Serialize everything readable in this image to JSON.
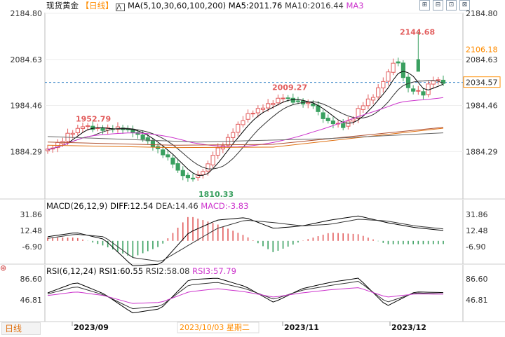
{
  "header": {
    "symbol": "现货黄金",
    "period": "【日线】",
    "ma_set": "MA(5,10,30,60,100,200)",
    "ma5": "MA5:2011.76",
    "ma10": "MA10:2016.44",
    "ma3": "MA3"
  },
  "toolbar": [
    "⊞",
    "⊟",
    "⊡",
    "⊠"
  ],
  "price_axis": [
    "2184.80",
    "2106.18",
    "2084.63",
    "2034.57",
    "1984.46",
    "1884.29"
  ],
  "annotations": {
    "high": "2144.68",
    "peak_sep": "1952.79",
    "peak_oct": "2009.27",
    "low": "1810.33"
  },
  "macd": {
    "title": "MACD(26,12,9)",
    "diff": "DIFF:12.54",
    "dea": "DEA:14.46",
    "macd": "MACD:-3.83",
    "ticks": [
      "31.86",
      "12.48",
      "-6.90"
    ]
  },
  "rsi": {
    "title": "RSI(6,12,24)",
    "rsi1": "RSI1:60.55",
    "rsi2": "RSI2:58.08",
    "rsi3": "RSI3:57.79",
    "ticks": [
      "86.60",
      "46.81"
    ]
  },
  "xaxis": {
    "months": [
      "2023/09",
      "2023/11",
      "2023/12"
    ],
    "cursor_date": "2023/10/03 星期二",
    "period_button": "日线"
  },
  "colors": {
    "up": "#e25c5c",
    "down": "#3aa060",
    "ma5": "#000000",
    "ma10": "#333333",
    "ma30": "#cc33cc",
    "ma60": "#e07010",
    "ma100": "#b05030",
    "ma200": "#666666",
    "accent": "#ff8c00"
  },
  "chart_data": [
    {
      "type": "candlestick",
      "title": "现货黄金",
      "x": [
        "2023-08-21",
        "2023-09-01",
        "2023-09-20",
        "2023-10-06",
        "2023-10-09",
        "2023-10-20",
        "2023-10-27",
        "2023-11-03",
        "2023-11-13",
        "2023-11-24",
        "2023-12-01",
        "2023-12-04",
        "2023-12-08",
        "2023-12-13",
        "2023-12-15"
      ],
      "close": [
        1888,
        1940,
        1930,
        1825,
        1833,
        1975,
        2006,
        1993,
        1940,
        1995,
        2055,
        2075,
        2010,
        2045,
        2036
      ],
      "ma5": [
        1900,
        1938,
        1928,
        1840,
        1830,
        1960,
        1995,
        1995,
        1955,
        1990,
        2040,
        2070,
        2018,
        2012,
        2012
      ],
      "ylim": [
        1784,
        2185
      ],
      "grid": true
    },
    {
      "type": "line",
      "title": "MACD(26,12,9)",
      "series": [
        {
          "name": "DIFF",
          "values": [
            5,
            10,
            2,
            -30,
            -28,
            10,
            25,
            28,
            15,
            18,
            25,
            30,
            22,
            16,
            12.54
          ]
        },
        {
          "name": "DEA",
          "values": [
            3,
            8,
            5,
            -20,
            -25,
            -5,
            15,
            25,
            22,
            18,
            20,
            26,
            24,
            18,
            14.46
          ]
        },
        {
          "name": "MACD",
          "values": [
            4,
            4,
            -6,
            -20,
            -6,
            30,
            20,
            6,
            -14,
            0,
            10,
            8,
            -4,
            -4,
            -3.83
          ]
        }
      ],
      "ylim": [
        -21,
        46
      ]
    },
    {
      "type": "line",
      "title": "RSI(6,12,24)",
      "series": [
        {
          "name": "RSI1",
          "values": [
            60,
            80,
            58,
            22,
            30,
            85,
            88,
            72,
            42,
            68,
            80,
            88,
            35,
            62,
            60.55
          ]
        },
        {
          "name": "RSI2",
          "values": [
            58,
            72,
            56,
            30,
            35,
            75,
            80,
            68,
            48,
            65,
            74,
            82,
            42,
            60,
            58.08
          ]
        },
        {
          "name": "RSI3",
          "values": [
            55,
            62,
            55,
            40,
            42,
            62,
            68,
            62,
            52,
            60,
            66,
            70,
            52,
            58,
            57.79
          ]
        }
      ],
      "ylim": [
        20,
        100
      ]
    }
  ]
}
